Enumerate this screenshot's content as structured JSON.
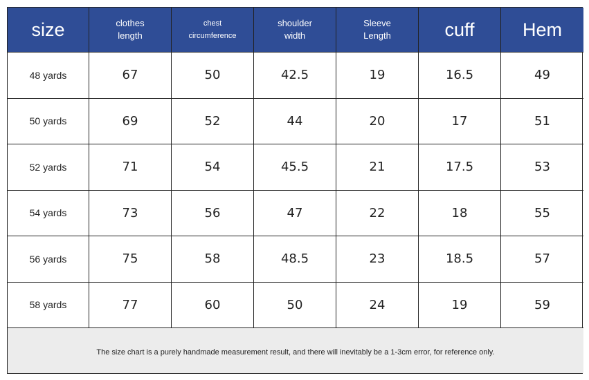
{
  "table": {
    "header": [
      "size",
      "clothes length",
      "chest circumference",
      "shoulder width",
      "Sleeve Length",
      "cuff",
      "Hem"
    ],
    "rows": [
      [
        "48 yards",
        67,
        50,
        42.5,
        19,
        16.5,
        49
      ],
      [
        "50 yards",
        69,
        52,
        44,
        20,
        17,
        51
      ],
      [
        "52 yards",
        71,
        54,
        45.5,
        21,
        17.5,
        53
      ],
      [
        "54 yards",
        73,
        56,
        47,
        22,
        18,
        55
      ],
      [
        "56 yards",
        75,
        58,
        48.5,
        23,
        18.5,
        57
      ],
      [
        "58 yards",
        77,
        60,
        50,
        24,
        19,
        59
      ]
    ],
    "note": "The size chart is a purely handmade measurement result, and there will inevitably be a 1-3cm error, for reference only."
  }
}
